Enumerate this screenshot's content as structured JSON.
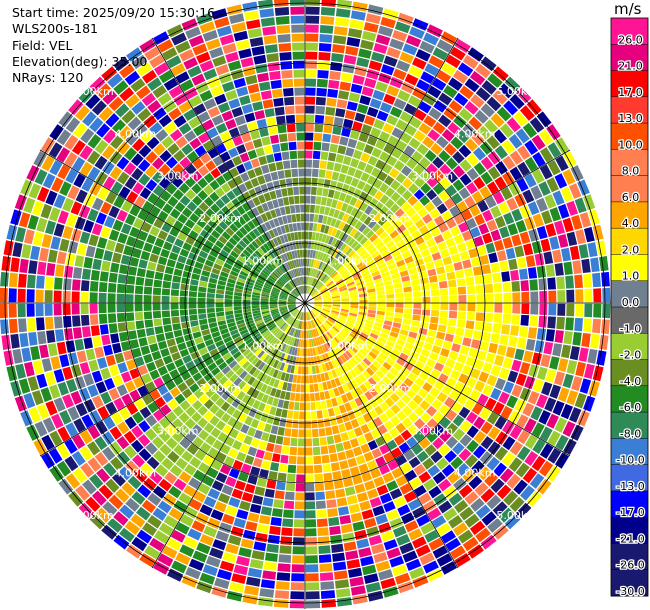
{
  "header": {
    "start_time": "Start time: 2025/09/20 15:30:16",
    "instrument": "WLS200s-181",
    "field": "Field: VEL",
    "elevation": "Elevation(deg): 35.00",
    "nrays": "NRays: 120"
  },
  "chart_data": {
    "type": "heatmap",
    "projection": "polar-ppi",
    "field": "VEL",
    "units": "m/s",
    "n_rays": 120,
    "range_rings_km": [
      1,
      2,
      3,
      4,
      5
    ],
    "range_labels": [
      "1.00km",
      "2.00km",
      "3.00km",
      "4.00km",
      "5.00km"
    ],
    "max_range_km": 5.1,
    "colorbar": {
      "unit": "m/s",
      "ticks": [
        "26.0",
        "21.0",
        "17.0",
        "13.0",
        "10.0",
        "8.0",
        "6.0",
        "4.0",
        "2.0",
        "1.0",
        "0.0",
        "-1.0",
        "-2.0",
        "-4.0",
        "-6.0",
        "-8.0",
        "-10.0",
        "-13.0",
        "-17.0",
        "-21.0",
        "-26.0",
        "-30.0"
      ],
      "colors": [
        "#ff1493",
        "#e6007e",
        "#ff0000",
        "#ff3b30",
        "#ff4f00",
        "#ff7f50",
        "#ff7f50",
        "#ffa500",
        "#ffd700",
        "#ffff00",
        "#708090",
        "#696969",
        "#9acd32",
        "#6b8e23",
        "#228b22",
        "#2e8b57",
        "#3a7fd5",
        "#4169e1",
        "#0000ff",
        "#00008b",
        "#191970",
        "#191970"
      ]
    },
    "sectors": [
      {
        "name": "east",
        "az_center": 100,
        "half_width": 55,
        "dominant": "#ffff00",
        "mix": [
          "#ffd700",
          "#ffa500",
          "#ff7f50"
        ]
      },
      {
        "name": "south",
        "az_center": 165,
        "half_width": 25,
        "dominant": "#ffa500",
        "mix": [
          "#ffff00",
          "#ffd700",
          "#9acd32"
        ]
      },
      {
        "name": "northeast",
        "az_center": 30,
        "half_width": 25,
        "dominant": "#9acd32",
        "mix": [
          "#708090",
          "#6b8e23",
          "#ffd700"
        ]
      },
      {
        "name": "west",
        "az_center": 280,
        "half_width": 50,
        "dominant": "#228b22",
        "mix": [
          "#6b8e23",
          "#2e8b57",
          "#9acd32"
        ]
      },
      {
        "name": "southwest",
        "az_center": 220,
        "half_width": 25,
        "dominant": "#9acd32",
        "mix": [
          "#708090",
          "#6b8e23",
          "#ffff00"
        ]
      },
      {
        "name": "northwest-inner",
        "az_center": 250,
        "half_width": 15,
        "dominant": "#3a7fd5",
        "mix": [
          "#4169e1",
          "#228b22"
        ]
      }
    ],
    "noise_colors": [
      "#ff1493",
      "#ff0000",
      "#ff4f00",
      "#ffff00",
      "#ffa500",
      "#708090",
      "#228b22",
      "#2e8b57",
      "#3a7fd5",
      "#0000ff",
      "#00008b",
      "#191970",
      "#9acd32",
      "#6b8e23",
      "#ff7f50",
      "#e6007e"
    ]
  }
}
